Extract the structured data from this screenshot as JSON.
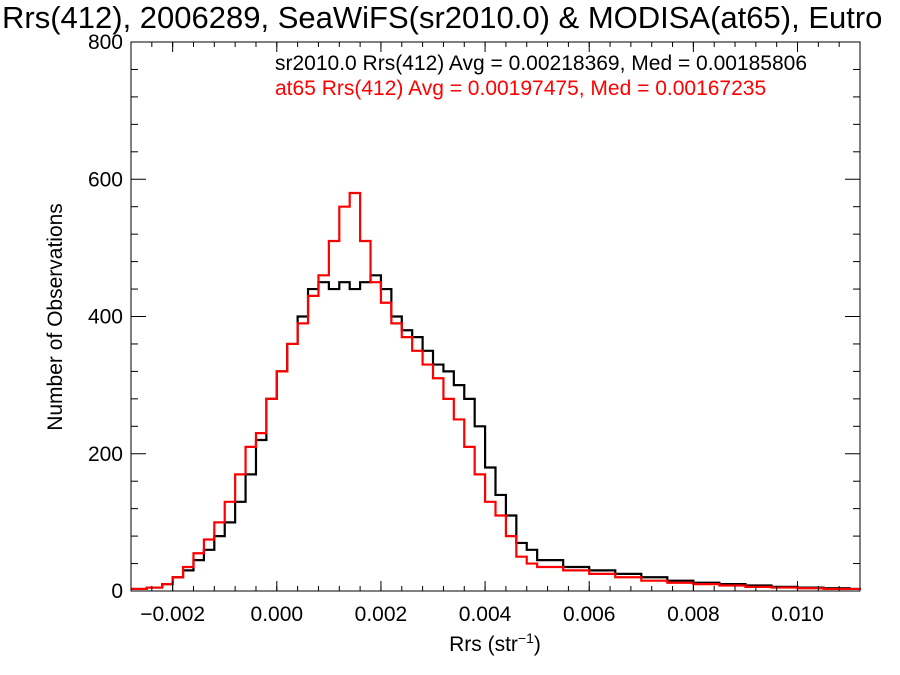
{
  "chart_data": {
    "type": "step-histogram",
    "title": "Rrs(412), 2006289, SeaWiFS(sr2010.0) & MODISA(at65), Eutro",
    "xlabel": "Rrs (str",
    "xlabel_sup": "−1",
    "xlabel_close": ")",
    "ylabel": "Number of Observations",
    "xlim": [
      -0.0028,
      0.0112
    ],
    "ylim": [
      0,
      800
    ],
    "xticks": [
      -0.002,
      0.0,
      0.002,
      0.004,
      0.006,
      0.008,
      0.01
    ],
    "xtick_labels": [
      "−0.002",
      "0.000",
      "0.002",
      "0.004",
      "0.006",
      "0.008",
      "0.010"
    ],
    "yticks": [
      0,
      200,
      400,
      600,
      800
    ],
    "ytick_labels": [
      "0",
      "200",
      "400",
      "600",
      "800"
    ],
    "annotations": [
      {
        "text": "sr2010.0 Rrs(412) Avg = 0.00218369, Med = 0.00185806",
        "color": "#000000"
      },
      {
        "text": "at65 Rrs(412) Avg = 0.00197475, Med = 0.00167235",
        "color": "#ff0000"
      }
    ],
    "series": [
      {
        "color": "#000000",
        "x": [
          -0.0028,
          -0.0025,
          -0.0022,
          -0.002,
          -0.0018,
          -0.0016,
          -0.0014,
          -0.0012,
          -0.001,
          -0.0008,
          -0.0006,
          -0.0004,
          -0.0002,
          0.0,
          0.0002,
          0.0004,
          0.0006,
          0.0008,
          0.001,
          0.0012,
          0.0014,
          0.0016,
          0.0018,
          0.002,
          0.0022,
          0.0024,
          0.0026,
          0.0028,
          0.003,
          0.0032,
          0.0034,
          0.0036,
          0.0038,
          0.004,
          0.0042,
          0.0044,
          0.0046,
          0.0048,
          0.005,
          0.0055,
          0.006,
          0.0065,
          0.007,
          0.0075,
          0.008,
          0.0085,
          0.009,
          0.0095,
          0.01,
          0.0105,
          0.011,
          0.0112
        ],
        "y": [
          3,
          5,
          10,
          20,
          30,
          45,
          60,
          80,
          100,
          130,
          170,
          220,
          280,
          320,
          360,
          400,
          440,
          450,
          440,
          450,
          440,
          450,
          460,
          440,
          400,
          380,
          370,
          350,
          330,
          320,
          300,
          280,
          240,
          180,
          140,
          110,
          70,
          60,
          45,
          35,
          30,
          25,
          20,
          15,
          12,
          10,
          8,
          6,
          5,
          4,
          3,
          3
        ]
      },
      {
        "color": "#ff0000",
        "x": [
          -0.0028,
          -0.0025,
          -0.0022,
          -0.002,
          -0.0018,
          -0.0016,
          -0.0014,
          -0.0012,
          -0.001,
          -0.0008,
          -0.0006,
          -0.0004,
          -0.0002,
          0.0,
          0.0002,
          0.0004,
          0.0006,
          0.0008,
          0.001,
          0.0012,
          0.0014,
          0.0016,
          0.0018,
          0.002,
          0.0022,
          0.0024,
          0.0026,
          0.0028,
          0.003,
          0.0032,
          0.0034,
          0.0036,
          0.0038,
          0.004,
          0.0042,
          0.0044,
          0.0046,
          0.0048,
          0.005,
          0.0055,
          0.006,
          0.0065,
          0.007,
          0.0075,
          0.008,
          0.0085,
          0.009,
          0.0095,
          0.01,
          0.0105,
          0.011,
          0.0112
        ],
        "y": [
          3,
          5,
          10,
          20,
          35,
          55,
          75,
          100,
          130,
          170,
          210,
          230,
          280,
          320,
          360,
          390,
          430,
          460,
          510,
          560,
          580,
          510,
          450,
          420,
          390,
          370,
          350,
          330,
          310,
          280,
          250,
          210,
          170,
          130,
          110,
          80,
          50,
          40,
          35,
          30,
          25,
          20,
          15,
          12,
          10,
          8,
          6,
          5,
          4,
          3,
          3,
          2
        ]
      }
    ]
  }
}
